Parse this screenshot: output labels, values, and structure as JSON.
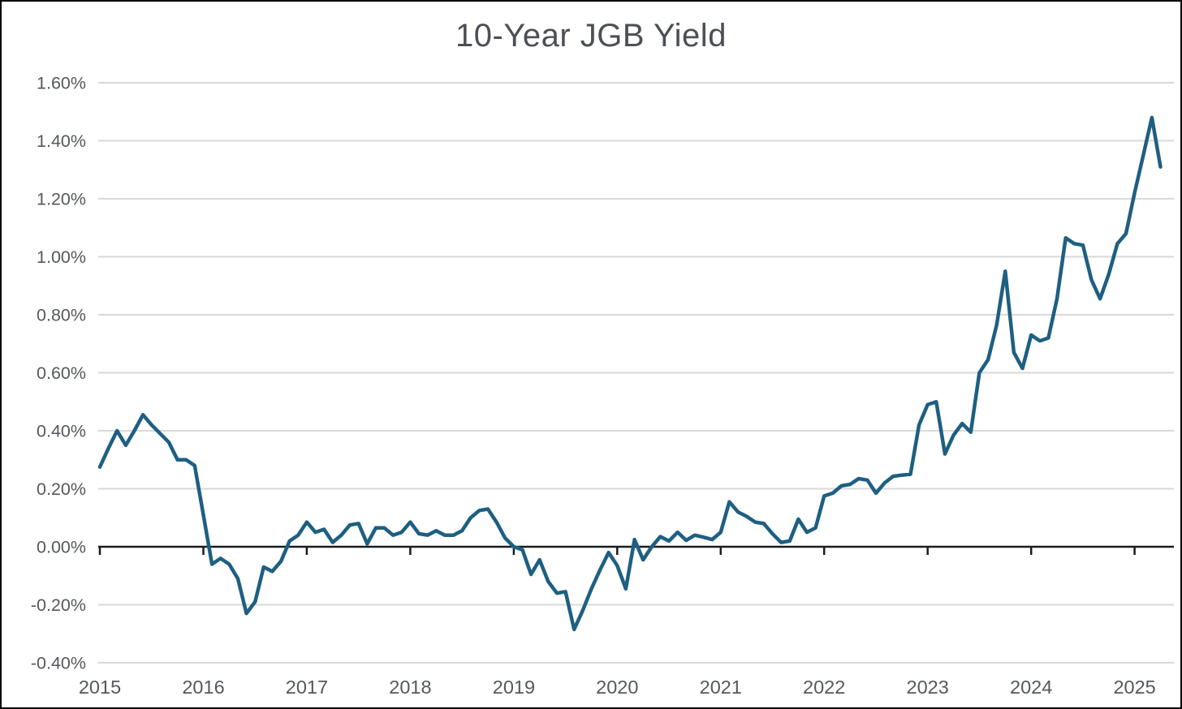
{
  "page": {
    "background_color": "#ffffff",
    "border_color": "#000000"
  },
  "chart_data": {
    "type": "line",
    "title": "10-Year JGB Yield",
    "title_color": "#4c4f54",
    "line_color": "#1e5f82",
    "grid_color": "#d9d9d9",
    "axis_color": "#1a1c1e",
    "label_color": "#55585c",
    "legend": "none",
    "grid": "horizontal-only",
    "ylim": [
      -0.4,
      1.6
    ],
    "y_ticks": [
      {
        "value": -0.4,
        "label": "-0.40%"
      },
      {
        "value": -0.2,
        "label": "-0.20%"
      },
      {
        "value": 0.0,
        "label": "0.00%"
      },
      {
        "value": 0.2,
        "label": "0.20%"
      },
      {
        "value": 0.4,
        "label": "0.40%"
      },
      {
        "value": 0.6,
        "label": "0.60%"
      },
      {
        "value": 0.8,
        "label": "0.80%"
      },
      {
        "value": 1.0,
        "label": "1.00%"
      },
      {
        "value": 1.2,
        "label": "1.20%"
      },
      {
        "value": 1.4,
        "label": "1.40%"
      },
      {
        "value": 1.6,
        "label": "1.60%"
      }
    ],
    "x_tick_labels": [
      "2015",
      "2016",
      "2017",
      "2018",
      "2019",
      "2020",
      "2021",
      "2022",
      "2023",
      "2024",
      "2025"
    ],
    "x_unit": "month",
    "x_range_depicted": "Jan 2015 - Apr 2025",
    "series": [
      {
        "name": "10-Year JGB Yield (%)",
        "start": "2015-01",
        "frequency": "monthly",
        "values": [
          0.275,
          0.34,
          0.4,
          0.35,
          0.4,
          0.455,
          0.42,
          0.39,
          0.36,
          0.3,
          0.3,
          0.28,
          0.11,
          -0.06,
          -0.04,
          -0.06,
          -0.11,
          -0.23,
          -0.19,
          -0.07,
          -0.085,
          -0.05,
          0.02,
          0.04,
          0.085,
          0.05,
          0.06,
          0.015,
          0.04,
          0.075,
          0.08,
          0.01,
          0.065,
          0.065,
          0.04,
          0.05,
          0.085,
          0.045,
          0.04,
          0.055,
          0.04,
          0.04,
          0.055,
          0.1,
          0.125,
          0.13,
          0.085,
          0.03,
          0.0,
          -0.01,
          -0.095,
          -0.045,
          -0.12,
          -0.16,
          -0.155,
          -0.285,
          -0.22,
          -0.145,
          -0.08,
          -0.02,
          -0.065,
          -0.145,
          0.025,
          -0.045,
          0.0,
          0.035,
          0.02,
          0.05,
          0.022,
          0.04,
          0.033,
          0.025,
          0.05,
          0.155,
          0.12,
          0.105,
          0.085,
          0.08,
          0.045,
          0.015,
          0.02,
          0.095,
          0.05,
          0.065,
          0.175,
          0.185,
          0.21,
          0.215,
          0.235,
          0.23,
          0.185,
          0.22,
          0.243,
          0.247,
          0.25,
          0.42,
          0.49,
          0.5,
          0.32,
          0.385,
          0.425,
          0.395,
          0.6,
          0.645,
          0.765,
          0.95,
          0.67,
          0.615,
          0.73,
          0.71,
          0.72,
          0.855,
          1.065,
          1.045,
          1.04,
          0.92,
          0.855,
          0.94,
          1.045,
          1.08,
          1.22,
          1.35,
          1.48,
          1.31
        ]
      }
    ]
  }
}
